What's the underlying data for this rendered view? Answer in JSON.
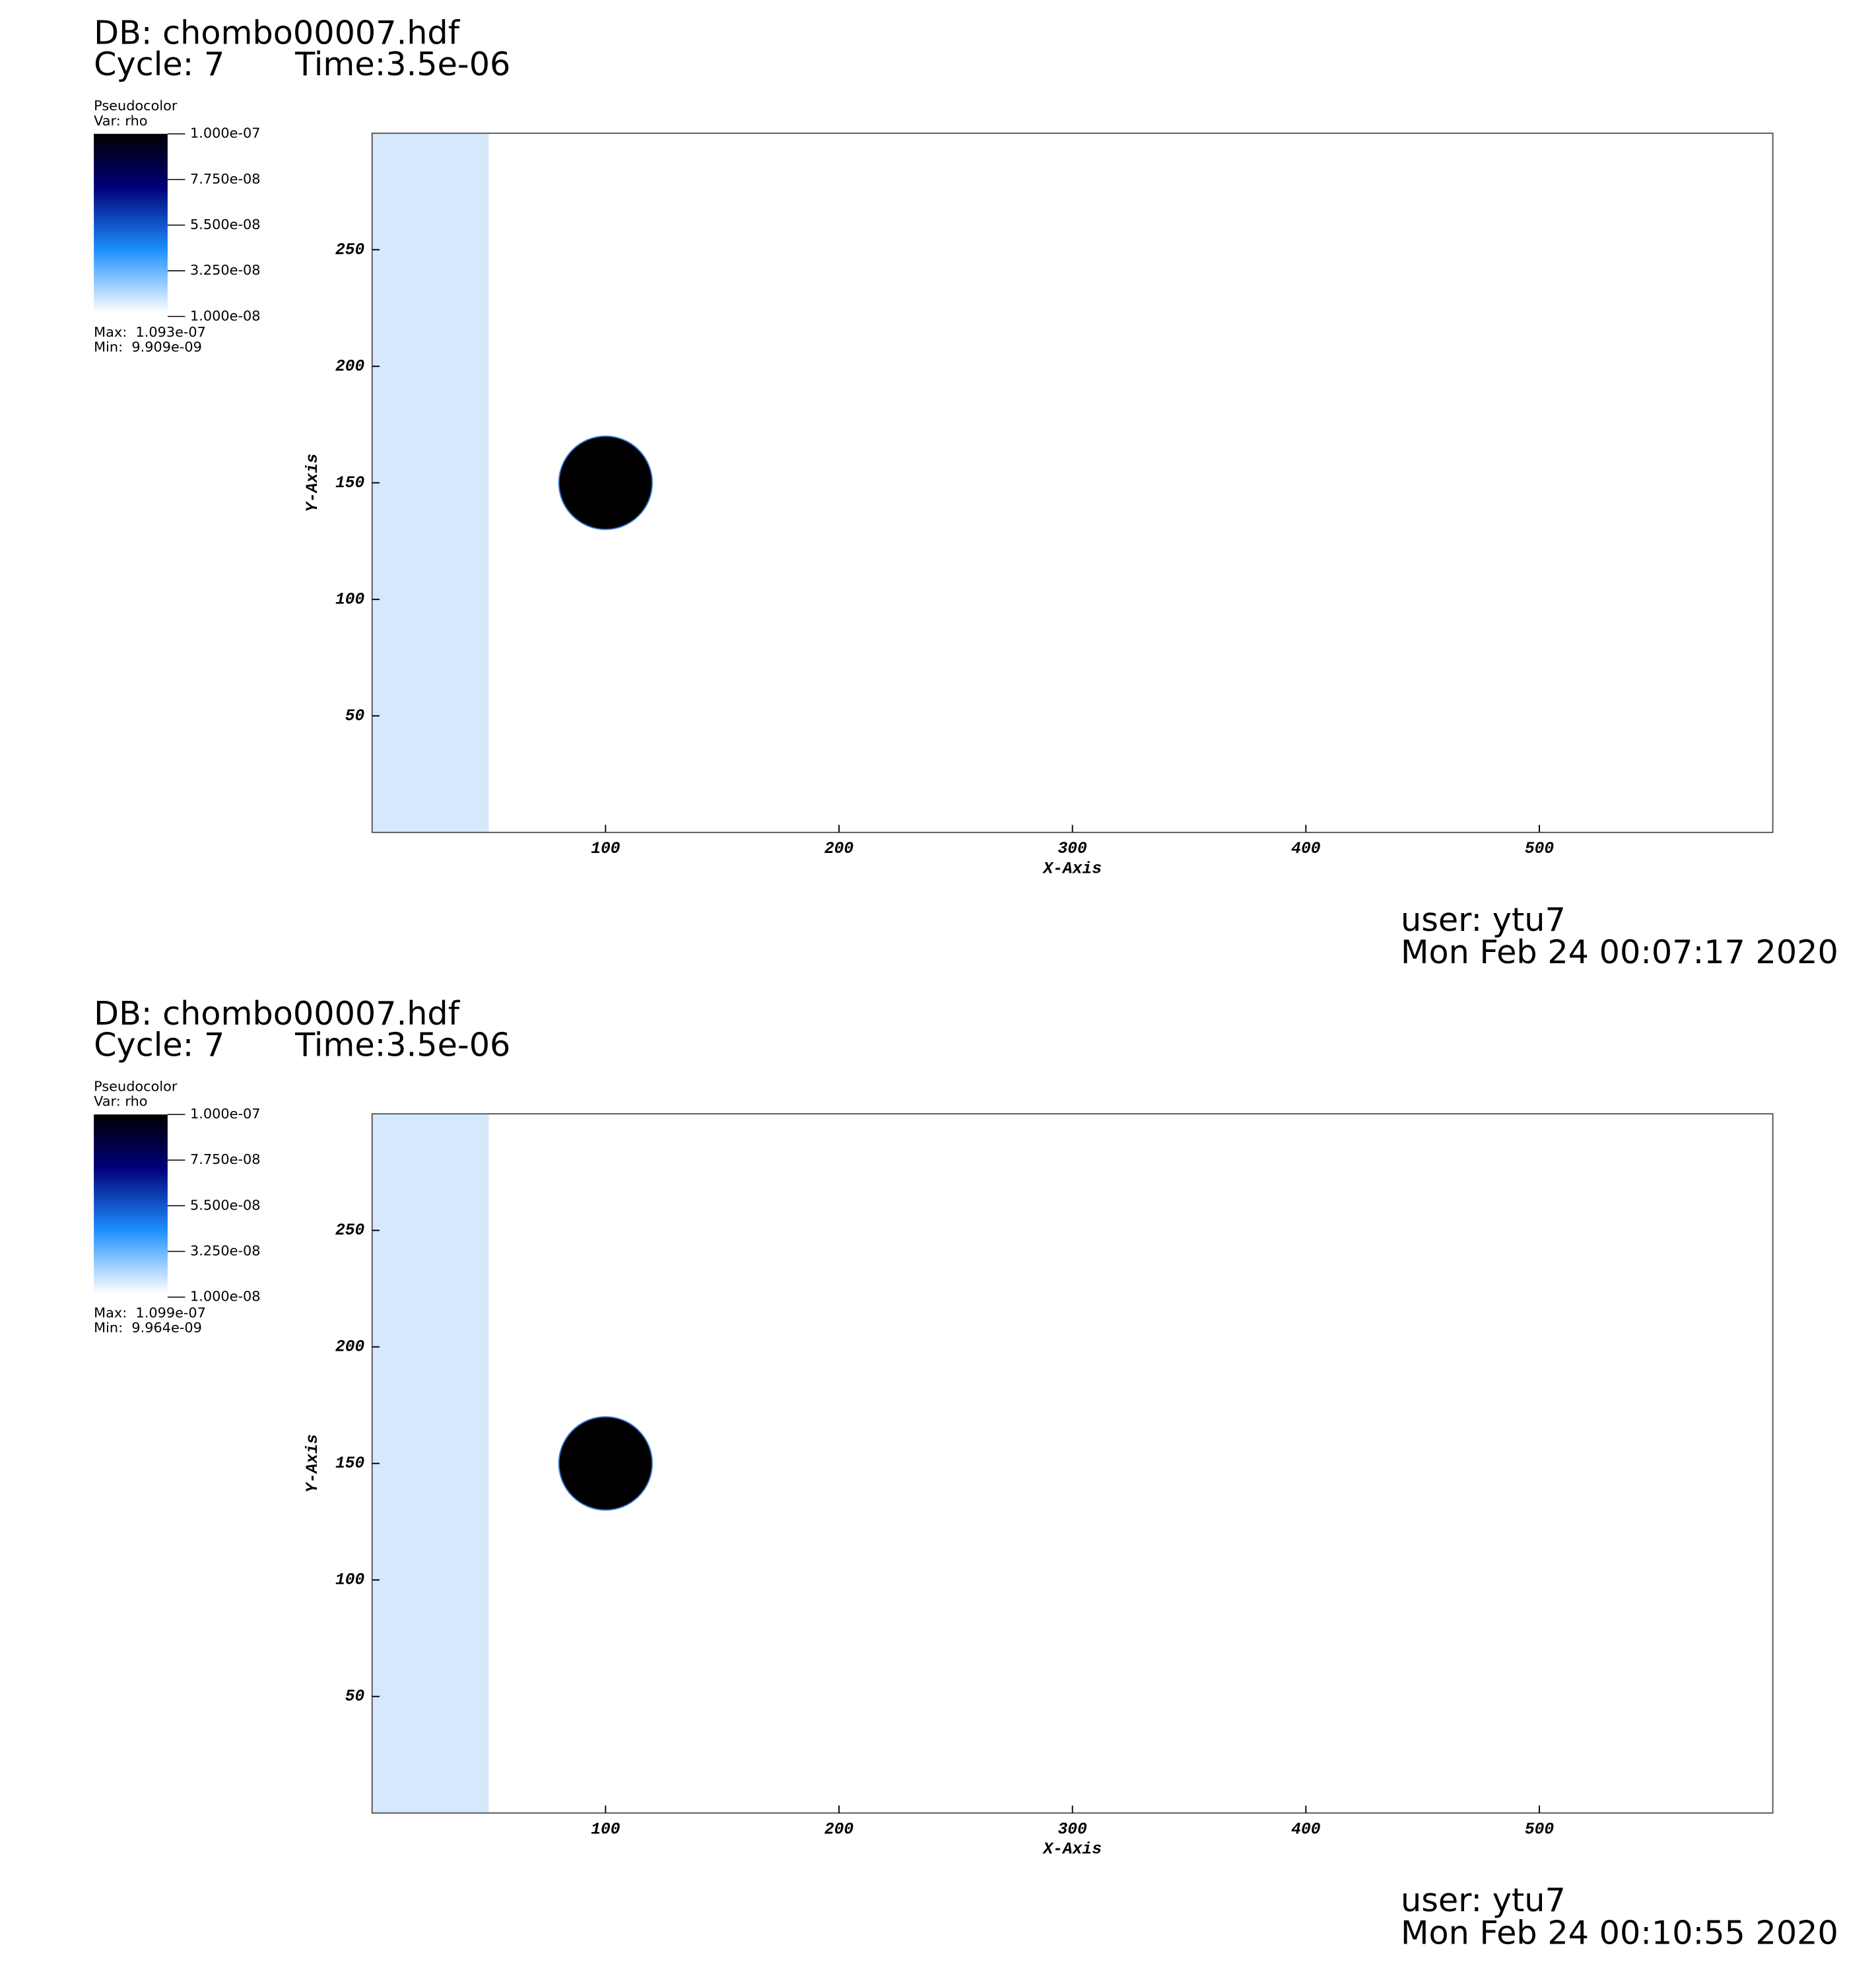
{
  "chart_data": [
    {
      "type": "pseudocolor",
      "title": "DB: chombo00007.hdf",
      "cycle": "Cycle: 7",
      "time": "Time:3.5e-06",
      "legend_title": "Pseudocolor",
      "legend_var": "Var: rho",
      "legend_lim": [
        1e-08,
        1e-07
      ],
      "legend_ticks": [
        {
          "value": 1e-07,
          "label": "1.000e-07"
        },
        {
          "value": 7.75e-08,
          "label": "7.750e-08"
        },
        {
          "value": 5.5e-08,
          "label": "5.500e-08"
        },
        {
          "value": 3.25e-08,
          "label": "3.250e-08"
        },
        {
          "value": 1e-08,
          "label": "1.000e-08"
        }
      ],
      "max_label": "Max:  1.093e-07",
      "min_label": "Min:  9.909e-09",
      "x_label": "X-Axis",
      "y_label": "Y-Axis",
      "xlim": [
        0,
        600
      ],
      "ylim": [
        0,
        300
      ],
      "xticks": [
        100,
        200,
        300,
        400,
        500
      ],
      "yticks": [
        50,
        100,
        150,
        200,
        250
      ],
      "regions": [
        {
          "shape": "band",
          "x": [
            0,
            50
          ],
          "value": 1.5e-08,
          "color": "#d6e8fc"
        },
        {
          "shape": "circle",
          "center": [
            100,
            150
          ],
          "radius": 20,
          "value": 1e-07,
          "color": "#000000"
        }
      ],
      "user": "user: ytu7",
      "date": "Mon Feb 24 00:07:17 2020"
    },
    {
      "type": "pseudocolor",
      "title": "DB: chombo00007.hdf",
      "cycle": "Cycle: 7",
      "time": "Time:3.5e-06",
      "legend_title": "Pseudocolor",
      "legend_var": "Var: rho",
      "legend_lim": [
        1e-08,
        1e-07
      ],
      "legend_ticks": [
        {
          "value": 1e-07,
          "label": "1.000e-07"
        },
        {
          "value": 7.75e-08,
          "label": "7.750e-08"
        },
        {
          "value": 5.5e-08,
          "label": "5.500e-08"
        },
        {
          "value": 3.25e-08,
          "label": "3.250e-08"
        },
        {
          "value": 1e-08,
          "label": "1.000e-08"
        }
      ],
      "max_label": "Max:  1.099e-07",
      "min_label": "Min:  9.964e-09",
      "x_label": "X-Axis",
      "y_label": "Y-Axis",
      "xlim": [
        0,
        600
      ],
      "ylim": [
        0,
        300
      ],
      "xticks": [
        100,
        200,
        300,
        400,
        500
      ],
      "yticks": [
        50,
        100,
        150,
        200,
        250
      ],
      "regions": [
        {
          "shape": "band",
          "x": [
            0,
            50
          ],
          "value": 1.5e-08,
          "color": "#d6e8fc"
        },
        {
          "shape": "circle",
          "center": [
            100,
            150
          ],
          "radius": 20,
          "value": 1e-07,
          "color": "#000000"
        }
      ],
      "user": "user: ytu7",
      "date": "Mon Feb 24 00:10:55 2020"
    }
  ]
}
